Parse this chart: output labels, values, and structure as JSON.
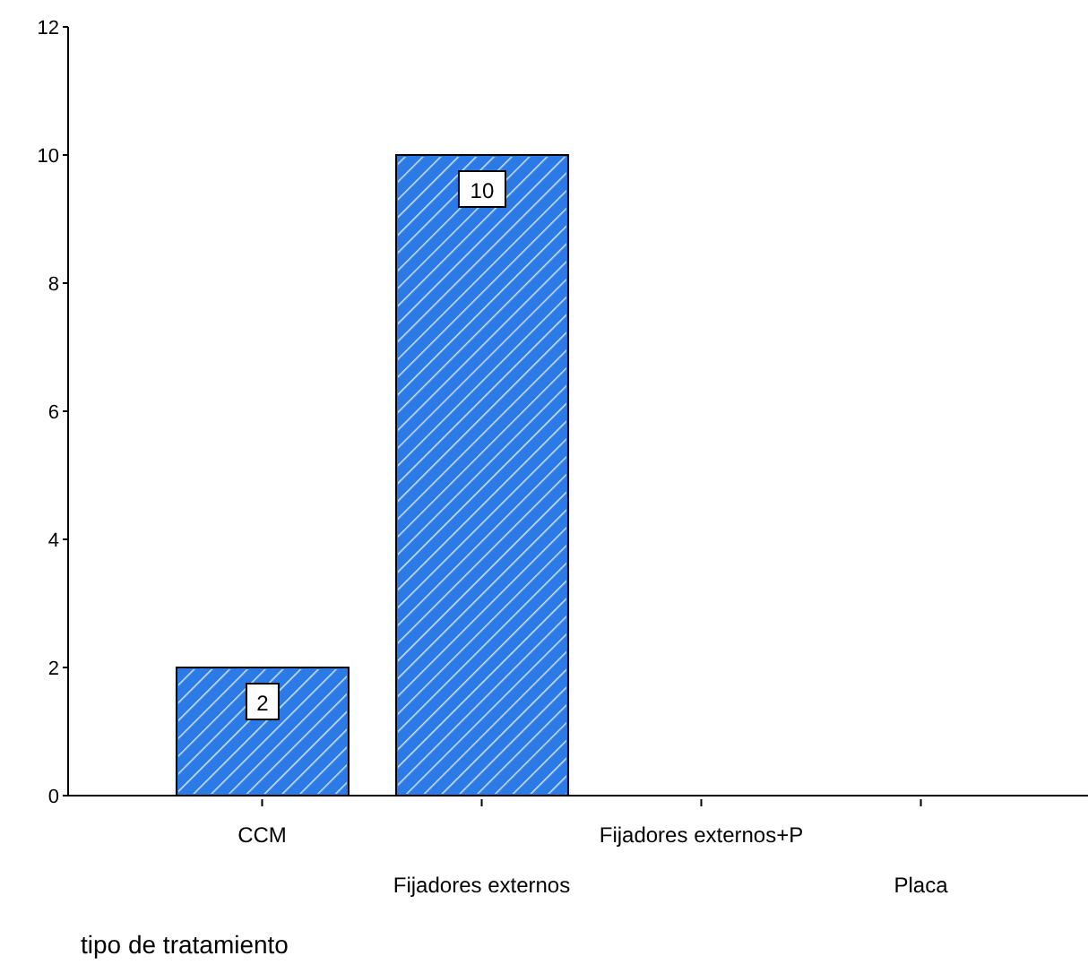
{
  "chart_data": {
    "type": "bar",
    "xlabel": "tipo de tratamiento",
    "categories": [
      "CCM",
      "Fijadores externos",
      "Fijadores externos+P",
      "Placa"
    ],
    "values": [
      2,
      10,
      0,
      0
    ],
    "value_labels": [
      "2",
      "10",
      null,
      null
    ],
    "color": "#2b7ae6",
    "ylim": [
      0,
      12
    ],
    "yticks": [
      0,
      2,
      4,
      6,
      8,
      10,
      12
    ],
    "grid": false,
    "legend": false
  }
}
